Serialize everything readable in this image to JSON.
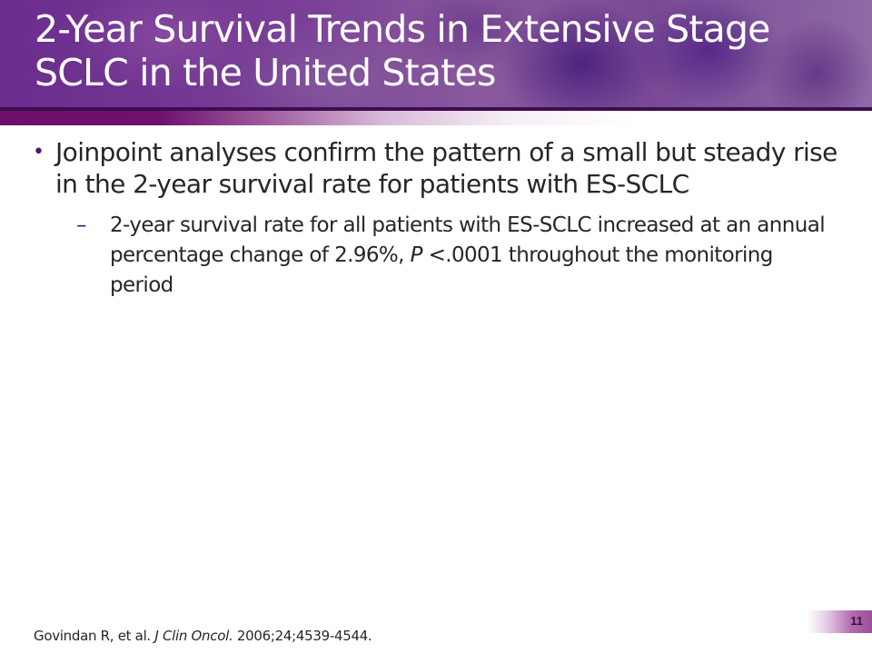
{
  "slide": {
    "title_line1": "2-Year Survival Trends in Extensive Stage",
    "title_line2": "SCLC in the United States",
    "bullets": [
      {
        "text": "Joinpoint analyses confirm the pattern of a small but steady rise in the 2-year survival rate for patients with ES-SCLC",
        "sub_bullets": [
          {
            "text_before_p": "2-year survival rate for all patients with ES-SCLC increased at an annual percentage change of 2.96%, ",
            "p_label": "P",
            "text_after_p": " <.0001 throughout the monitoring period"
          }
        ]
      }
    ],
    "citation": {
      "authors": "Govindan R, et al. ",
      "journal": "J Clin Oncol.",
      "details": " 2006;24;4539-4544."
    },
    "page_number": "11",
    "colors": {
      "header_purple": "#6a2d8e",
      "accent_bar": "#6b0f6b",
      "bullet": "#4a1870",
      "text": "#262626"
    }
  }
}
